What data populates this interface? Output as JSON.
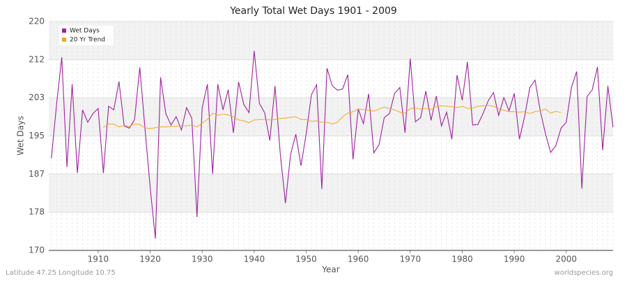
{
  "chart_data": {
    "type": "line",
    "title": "Yearly Total Wet Days 1901 - 2009",
    "xlabel": "Year",
    "ylabel": "Wet Days",
    "footer_left": "Latitude 47.25 Longitude 10.75",
    "footer_right": "worldspecies.org",
    "x": [
      1901,
      1902,
      1903,
      1904,
      1905,
      1906,
      1907,
      1908,
      1909,
      1910,
      1911,
      1912,
      1913,
      1914,
      1915,
      1916,
      1917,
      1918,
      1919,
      1920,
      1921,
      1922,
      1923,
      1924,
      1925,
      1926,
      1927,
      1928,
      1929,
      1930,
      1931,
      1932,
      1933,
      1934,
      1935,
      1936,
      1937,
      1938,
      1939,
      1940,
      1941,
      1942,
      1943,
      1944,
      1945,
      1946,
      1947,
      1948,
      1949,
      1950,
      1951,
      1952,
      1953,
      1954,
      1955,
      1956,
      1957,
      1958,
      1959,
      1960,
      1961,
      1962,
      1963,
      1964,
      1965,
      1966,
      1967,
      1968,
      1969,
      1970,
      1971,
      1972,
      1973,
      1974,
      1975,
      1976,
      1977,
      1978,
      1979,
      1980,
      1981,
      1982,
      1983,
      1984,
      1985,
      1986,
      1987,
      1988,
      1989,
      1990,
      1991,
      1992,
      1993,
      1994,
      1995,
      1996,
      1997,
      1998,
      1999,
      2000,
      2001,
      2002,
      2003,
      2004,
      2005,
      2006,
      2007,
      2008,
      2009
    ],
    "series": [
      {
        "name": "Wet Days",
        "color": "#a020a0",
        "values": [
          190.1,
          201.9,
          212.2,
          188.2,
          206.3,
          186.9,
          200.7,
          198.0,
          199.9,
          201.0,
          186.9,
          201.5,
          200.7,
          206.9,
          197.2,
          196.7,
          198.6,
          210.0,
          196.6,
          183.7,
          172.6,
          207.8,
          199.9,
          197.4,
          199.2,
          196.3,
          201.2,
          198.9,
          177.3,
          201.2,
          206.3,
          186.7,
          206.3,
          200.7,
          205.1,
          195.7,
          206.8,
          201.9,
          200.1,
          213.6,
          202.1,
          200.1,
          194.0,
          205.9,
          191.3,
          180.3,
          191.0,
          195.4,
          188.5,
          195.5,
          204.0,
          206.2,
          183.4,
          209.8,
          206.0,
          205.0,
          205.3,
          208.4,
          189.9,
          200.9,
          197.7,
          204.2,
          191.3,
          193.1,
          199.0,
          199.9,
          204.3,
          205.6,
          195.7,
          211.9,
          198.1,
          199.0,
          204.8,
          198.4,
          203.7,
          197.2,
          200.2,
          194.3,
          208.3,
          202.8,
          211.2,
          197.4,
          197.5,
          199.9,
          202.7,
          204.5,
          199.5,
          203.4,
          200.5,
          204.3,
          194.3,
          199.3,
          205.6,
          207.2,
          200.5,
          195.5,
          191.4,
          192.9,
          196.7,
          198.0,
          205.6,
          209.1,
          183.5,
          203.6,
          205.1,
          210.1,
          191.9,
          205.9,
          196.9
        ]
      },
      {
        "name": "20 Yr Trend",
        "color": "#f5a623",
        "values": [
          null,
          null,
          null,
          null,
          null,
          null,
          null,
          null,
          null,
          null,
          196.9,
          197.6,
          197.6,
          197.0,
          197.3,
          197.1,
          197.6,
          197.5,
          196.8,
          196.6,
          196.8,
          197.0,
          197.0,
          197.1,
          197.1,
          197.3,
          197.2,
          197.4,
          197.0,
          197.8,
          198.6,
          200.0,
          199.5,
          199.8,
          199.6,
          199.2,
          198.5,
          198.3,
          197.9,
          198.5,
          198.6,
          198.6,
          198.5,
          198.6,
          198.8,
          198.9,
          199.1,
          199.2,
          198.6,
          198.6,
          198.2,
          198.3,
          198.0,
          198.0,
          197.6,
          198.0,
          199.2,
          200.0,
          200.3,
          200.9,
          200.8,
          200.6,
          200.4,
          200.9,
          201.3,
          201.0,
          200.7,
          200.2,
          200.0,
          201.0,
          201.1,
          200.9,
          201.0,
          200.8,
          201.4,
          201.6,
          201.5,
          201.4,
          201.2,
          201.5,
          201.0,
          201.1,
          201.5,
          201.6,
          201.7,
          201.5,
          201.0,
          200.6,
          200.3,
          200.3,
          200.2,
          200.3,
          199.9,
          200.3,
          200.5,
          200.9,
          200.0,
          200.4,
          200.1,
          null,
          null,
          null,
          null,
          null,
          null,
          null,
          null,
          null,
          null
        ]
      }
    ],
    "xlim": [
      1900.5,
      2009
    ],
    "xticks": [
      1910,
      1920,
      1930,
      1940,
      1950,
      1960,
      1970,
      1980,
      1990,
      2000
    ],
    "ylim": [
      170,
      220
    ],
    "yticks": [
      170,
      {
        "value": 178.33,
        "label": "178"
      },
      {
        "value": 186.67,
        "label": "187"
      },
      195,
      {
        "value": 203.33,
        "label": "203"
      },
      {
        "value": 211.67,
        "label": "212"
      },
      220
    ],
    "grid": true,
    "legend": "upper-left"
  }
}
